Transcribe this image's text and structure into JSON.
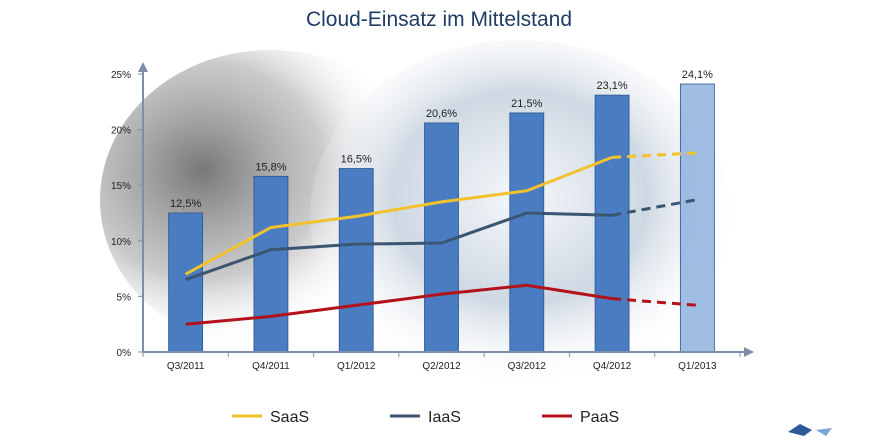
{
  "chart_data": {
    "type": "bar",
    "title": "Cloud-Einsatz im Mittelstand",
    "categories": [
      "Q3/2011",
      "Q4/2011",
      "Q1/2012",
      "Q2/2012",
      "Q3/2012",
      "Q4/2012",
      "Q1/2013"
    ],
    "bar_values": [
      12.5,
      15.8,
      16.5,
      20.6,
      21.5,
      23.1,
      24.1
    ],
    "bar_labels": [
      "12,5%",
      "15,8%",
      "16,5%",
      "20,6%",
      "21,5%",
      "23,1%",
      "24,1%"
    ],
    "projected_bar_index": 6,
    "ylim": [
      0,
      25
    ],
    "yticks": [
      0,
      5,
      10,
      15,
      20,
      25
    ],
    "ytick_labels": [
      "0%",
      "5%",
      "10%",
      "15%",
      "20%",
      "25%"
    ],
    "lines": [
      {
        "name": "SaaS",
        "color": "#f2c12e",
        "values": [
          7.0,
          11.2,
          12.2,
          13.5,
          14.5,
          17.5,
          17.9
        ],
        "projected_from_index": 5
      },
      {
        "name": "IaaS",
        "color": "#3b5671",
        "values": [
          6.5,
          9.2,
          9.7,
          9.8,
          12.5,
          12.3,
          13.7
        ],
        "projected_from_index": 5
      },
      {
        "name": "PaaS",
        "color": "#b3121b",
        "values": [
          2.5,
          3.2,
          4.2,
          5.2,
          6.0,
          4.8,
          4.2
        ],
        "projected_from_index": 5
      }
    ],
    "colors": {
      "bar": "#4a7cc2",
      "bar_edge": "#2b568f",
      "projected_bar": "#8fb2dd",
      "axis": "#7f8ea8"
    },
    "legend_position": "bottom",
    "grid": false
  }
}
